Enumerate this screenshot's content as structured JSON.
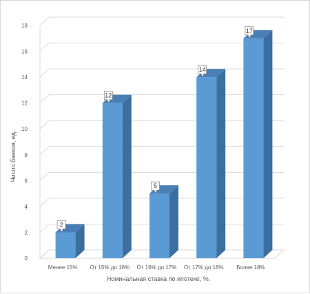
{
  "chart_data": {
    "type": "bar",
    "categories": [
      "Менее 15%",
      "От 15% до 16%",
      "От 16% до 17%",
      "От 17% до 18%",
      "Более 18%"
    ],
    "values": [
      2,
      12,
      5,
      14,
      17
    ],
    "xlabel": "Номинальная ставка по ипотеке, %.",
    "ylabel": "Число банков, ед.",
    "ylim": [
      0,
      18
    ],
    "yticks": [
      0,
      2,
      4,
      6,
      8,
      10,
      12,
      14,
      16,
      18
    ],
    "grid": true,
    "legend": "none",
    "data_labels": true,
    "style": "3d-column",
    "colors": {
      "bar_front": "#5b9bd5",
      "bar_side": "#3a6f9f",
      "bar_top": "#4a7fb5",
      "grid": "#d9d9d9"
    }
  }
}
